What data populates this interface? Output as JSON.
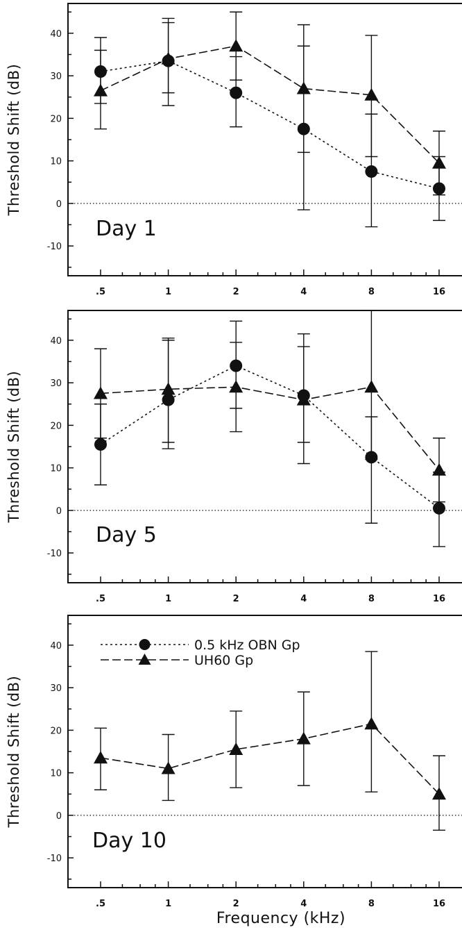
{
  "chart_data": [
    {
      "type": "line",
      "panel_label": "Day 1",
      "x": [
        0.5,
        1,
        2,
        4,
        8,
        16
      ],
      "x_tick_labels": [
        ".5",
        "1",
        "2",
        "4",
        "8",
        "16"
      ],
      "x_scale": "log",
      "xlabel": "",
      "ylabel": "Threshold Shift (dB)",
      "ylim": [
        -17,
        47
      ],
      "y_ticks": [
        40,
        30,
        20,
        10,
        0,
        -10
      ],
      "reference_line": 0,
      "series": [
        {
          "marker": "circle",
          "linestyle": "dotted",
          "values": [
            31,
            33.5,
            26,
            17.5,
            7.5,
            3.5
          ],
          "err_low": [
            23.5,
            23,
            18,
            -1.5,
            -5.5,
            -4
          ],
          "err_high": [
            39,
            42.5,
            34.5,
            37,
            21,
            11
          ]
        },
        {
          "marker": "triangle",
          "linestyle": "dashed",
          "values": [
            26.5,
            34,
            37,
            27,
            25.5,
            9.5
          ],
          "err_low": [
            17.5,
            26,
            29,
            12,
            11,
            2
          ],
          "err_high": [
            36,
            43.5,
            45,
            42,
            39.5,
            17
          ]
        }
      ]
    },
    {
      "type": "line",
      "panel_label": "Day 5",
      "x": [
        0.5,
        1,
        2,
        4,
        8,
        16
      ],
      "x_tick_labels": [
        ".5",
        "1",
        "2",
        "4",
        "8",
        "16"
      ],
      "x_scale": "log",
      "xlabel": "",
      "ylabel": "Threshold Shift (dB)",
      "ylim": [
        -17,
        47
      ],
      "y_ticks": [
        40,
        30,
        20,
        10,
        0,
        -10
      ],
      "reference_line": 0,
      "series": [
        {
          "marker": "circle",
          "linestyle": "dotted",
          "values": [
            15.5,
            26,
            34,
            27,
            12.5,
            0.5
          ],
          "err_low": [
            6,
            14.5,
            24,
            16,
            -3,
            -8.5
          ],
          "err_high": [
            25,
            40,
            44.5,
            38.5,
            22,
            9
          ]
        },
        {
          "marker": "triangle",
          "linestyle": "dashed",
          "values": [
            27.5,
            28.5,
            29,
            26,
            29,
            9.5
          ],
          "err_low": [
            17,
            16,
            18.5,
            11,
            12,
            2
          ],
          "err_high": [
            38,
            40.5,
            39.5,
            41.5,
            47,
            17
          ]
        }
      ]
    },
    {
      "type": "line",
      "panel_label": "Day 10",
      "x": [
        0.5,
        1,
        2,
        4,
        8,
        16
      ],
      "x_tick_labels": [
        ".5",
        "1",
        "2",
        "4",
        "8",
        "16"
      ],
      "x_scale": "log",
      "xlabel": "Frequency (kHz)",
      "ylabel": "Threshold Shift (dB)",
      "ylim": [
        -17,
        47
      ],
      "y_ticks": [
        40,
        30,
        20,
        10,
        0,
        -10
      ],
      "reference_line": 0,
      "legend": [
        {
          "name": "0.5 kHz OBN Gp",
          "marker": "circle",
          "linestyle": "dotted"
        },
        {
          "name": "UH60 Gp",
          "marker": "triangle",
          "linestyle": "dashed"
        }
      ],
      "legend_position": "top-left",
      "series": [
        {
          "marker": "triangle",
          "linestyle": "dashed",
          "values": [
            13.5,
            11,
            15.5,
            18,
            21.5,
            5
          ],
          "err_low": [
            6,
            3.5,
            6.5,
            7,
            5.5,
            -3.5
          ],
          "err_high": [
            20.5,
            19,
            24.5,
            29,
            38.5,
            14
          ]
        }
      ]
    }
  ]
}
